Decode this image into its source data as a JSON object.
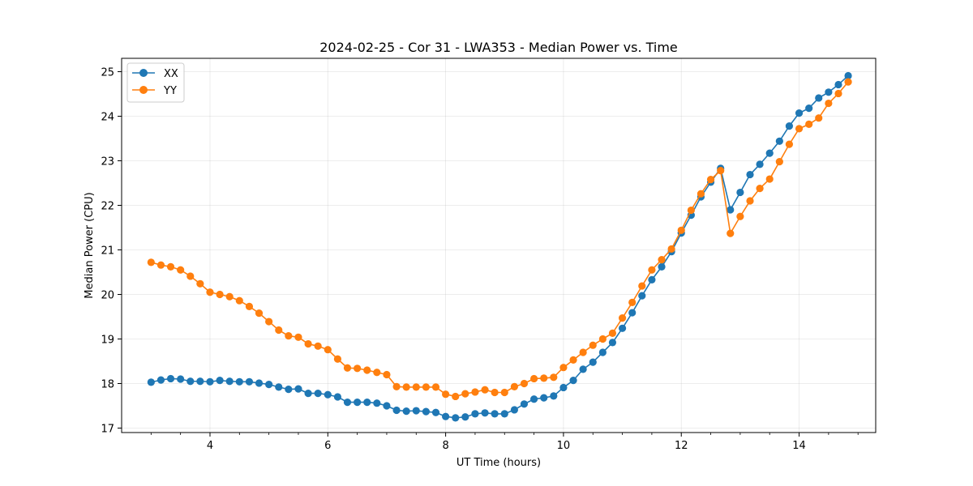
{
  "chart_data": {
    "type": "line",
    "title": "2024-02-25 - Cor 31 - LWA353 - Median Power vs. Time",
    "xlabel": "UT Time (hours)",
    "ylabel": "Median Power (CPU)",
    "xlim": [
      2.5,
      15.3
    ],
    "ylim": [
      16.9,
      25.3
    ],
    "xticks": [
      4,
      6,
      8,
      10,
      12,
      14
    ],
    "xtick_labels": [
      "4",
      "6",
      "8",
      "10",
      "12",
      "14"
    ],
    "yticks": [
      17,
      18,
      19,
      20,
      21,
      22,
      23,
      24,
      25
    ],
    "ytick_labels": [
      "17",
      "18",
      "19",
      "20",
      "21",
      "22",
      "23",
      "24",
      "25"
    ],
    "grid": true,
    "legend_position": "top-left",
    "series": [
      {
        "name": "XX",
        "color": "#1f77b4",
        "x": [
          3.0,
          3.167,
          3.333,
          3.5,
          3.667,
          3.833,
          4.0,
          4.167,
          4.333,
          4.5,
          4.667,
          4.833,
          5.0,
          5.167,
          5.333,
          5.5,
          5.667,
          5.833,
          6.0,
          6.167,
          6.333,
          6.5,
          6.667,
          6.833,
          7.0,
          7.167,
          7.333,
          7.5,
          7.667,
          7.833,
          8.0,
          8.167,
          8.333,
          8.5,
          8.667,
          8.833,
          9.0,
          9.167,
          9.333,
          9.5,
          9.667,
          9.833,
          10.0,
          10.167,
          10.333,
          10.5,
          10.667,
          10.833,
          11.0,
          11.167,
          11.333,
          11.5,
          11.667,
          11.833,
          12.0,
          12.167,
          12.333,
          12.5,
          12.667,
          12.833,
          13.0,
          13.167,
          13.333,
          13.5,
          13.667,
          13.833,
          14.0,
          14.167,
          14.333,
          14.5,
          14.667,
          14.833
        ],
        "values": [
          18.03,
          18.08,
          18.11,
          18.1,
          18.05,
          18.05,
          18.04,
          18.07,
          18.05,
          18.04,
          18.04,
          18.01,
          17.98,
          17.92,
          17.87,
          17.88,
          17.78,
          17.78,
          17.75,
          17.7,
          17.58,
          17.58,
          17.58,
          17.56,
          17.5,
          17.4,
          17.38,
          17.39,
          17.37,
          17.35,
          17.26,
          17.23,
          17.25,
          17.32,
          17.34,
          17.32,
          17.32,
          17.41,
          17.54,
          17.65,
          17.68,
          17.72,
          17.91,
          18.07,
          18.32,
          18.48,
          18.7,
          18.92,
          19.24,
          19.59,
          19.97,
          20.33,
          20.62,
          20.96,
          21.38,
          21.78,
          22.19,
          22.52,
          22.83,
          21.9,
          22.29,
          22.69,
          22.92,
          23.17,
          23.44,
          23.78,
          24.07,
          24.18,
          24.41,
          24.54,
          24.71,
          24.91
        ]
      },
      {
        "name": "YY",
        "color": "#ff7f0e",
        "x": [
          3.0,
          3.167,
          3.333,
          3.5,
          3.667,
          3.833,
          4.0,
          4.167,
          4.333,
          4.5,
          4.667,
          4.833,
          5.0,
          5.167,
          5.333,
          5.5,
          5.667,
          5.833,
          6.0,
          6.167,
          6.333,
          6.5,
          6.667,
          6.833,
          7.0,
          7.167,
          7.333,
          7.5,
          7.667,
          7.833,
          8.0,
          8.167,
          8.333,
          8.5,
          8.667,
          8.833,
          9.0,
          9.167,
          9.333,
          9.5,
          9.667,
          9.833,
          10.0,
          10.167,
          10.333,
          10.5,
          10.667,
          10.833,
          11.0,
          11.167,
          11.333,
          11.5,
          11.667,
          11.833,
          12.0,
          12.167,
          12.333,
          12.5,
          12.667,
          12.833,
          13.0,
          13.167,
          13.333,
          13.5,
          13.667,
          13.833,
          14.0,
          14.167,
          14.333,
          14.5,
          14.667,
          14.833
        ],
        "values": [
          20.72,
          20.66,
          20.62,
          20.55,
          20.41,
          20.24,
          20.05,
          20.0,
          19.95,
          19.86,
          19.73,
          19.58,
          19.39,
          19.2,
          19.07,
          19.04,
          18.89,
          18.84,
          18.76,
          18.55,
          18.35,
          18.34,
          18.3,
          18.25,
          18.2,
          17.93,
          17.92,
          17.92,
          17.92,
          17.92,
          17.76,
          17.71,
          17.77,
          17.81,
          17.86,
          17.8,
          17.8,
          17.93,
          18.0,
          18.11,
          18.12,
          18.14,
          18.36,
          18.53,
          18.7,
          18.86,
          19.0,
          19.13,
          19.47,
          19.82,
          20.19,
          20.55,
          20.78,
          21.02,
          21.44,
          21.89,
          22.26,
          22.58,
          22.78,
          21.37,
          21.75,
          22.1,
          22.38,
          22.59,
          22.98,
          23.37,
          23.72,
          23.82,
          23.96,
          24.29,
          24.51,
          24.77
        ]
      }
    ]
  }
}
